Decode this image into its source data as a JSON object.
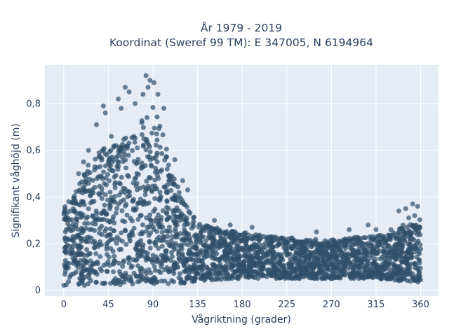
{
  "chart_data": {
    "type": "scatter",
    "title_lines": [
      "År 1979 - 2019",
      "Koordinat (Sweref 99 TM): E 347005, N 6194964"
    ],
    "xlabel": "Vågriktning (grader)",
    "ylabel": "Signifikant våghöjd (m)",
    "xlim": [
      -19,
      378
    ],
    "ylim": [
      -0.025,
      0.965
    ],
    "x_ticks": [
      0,
      45,
      90,
      135,
      180,
      225,
      270,
      315,
      360
    ],
    "x_tick_labels": [
      "0",
      "45",
      "90",
      "135",
      "180",
      "225",
      "270",
      "315",
      "360"
    ],
    "y_ticks": [
      0,
      0.2,
      0.4,
      0.6,
      0.8
    ],
    "y_tick_labels": [
      "0",
      "0,2",
      "0,4",
      "0,6",
      "0,8"
    ],
    "grid": true,
    "plot_background": "#e5ecf6",
    "marker_color": "#2f4f6a",
    "series": [
      {
        "envelope": [
          [
            0,
            0.35
          ],
          [
            10,
            0.42
          ],
          [
            20,
            0.5
          ],
          [
            30,
            0.58
          ],
          [
            40,
            0.62
          ],
          [
            45,
            0.63
          ],
          [
            55,
            0.62
          ],
          [
            65,
            0.67
          ],
          [
            75,
            0.72
          ],
          [
            85,
            0.8
          ],
          [
            90,
            0.8
          ],
          [
            95,
            0.75
          ],
          [
            100,
            0.68
          ],
          [
            105,
            0.6
          ],
          [
            110,
            0.5
          ],
          [
            115,
            0.45
          ],
          [
            120,
            0.4
          ],
          [
            125,
            0.35
          ],
          [
            130,
            0.32
          ],
          [
            135,
            0.3
          ],
          [
            145,
            0.28
          ],
          [
            160,
            0.26
          ],
          [
            180,
            0.25
          ],
          [
            200,
            0.24
          ],
          [
            220,
            0.23
          ],
          [
            240,
            0.22
          ],
          [
            260,
            0.22
          ],
          [
            280,
            0.22
          ],
          [
            300,
            0.23
          ],
          [
            315,
            0.23
          ],
          [
            330,
            0.25
          ],
          [
            345,
            0.29
          ],
          [
            355,
            0.3
          ],
          [
            360,
            0.31
          ]
        ],
        "floor": [
          [
            0,
            0.02
          ],
          [
            60,
            0.02
          ],
          [
            120,
            0.03
          ],
          [
            135,
            0.04
          ],
          [
            180,
            0.05
          ],
          [
            225,
            0.05
          ],
          [
            270,
            0.05
          ],
          [
            315,
            0.05
          ],
          [
            340,
            0.04
          ],
          [
            360,
            0.03
          ]
        ],
        "outliers": [
          [
            83,
            0.92
          ],
          [
            87,
            0.9
          ],
          [
            91,
            0.89
          ],
          [
            85,
            0.87
          ],
          [
            95,
            0.84
          ],
          [
            80,
            0.84
          ],
          [
            62,
            0.87
          ],
          [
            66,
            0.85
          ],
          [
            40,
            0.79
          ],
          [
            42,
            0.76
          ],
          [
            33,
            0.71
          ],
          [
            55,
            0.82
          ],
          [
            58,
            0.78
          ],
          [
            72,
            0.8
          ],
          [
            101,
            0.78
          ],
          [
            48,
            0.66
          ],
          [
            25,
            0.6
          ],
          [
            20,
            0.55
          ],
          [
            15,
            0.5
          ],
          [
            5,
            0.38
          ],
          [
            3,
            0.33
          ],
          [
            112,
            0.56
          ],
          [
            120,
            0.47
          ],
          [
            125,
            0.43
          ],
          [
            152,
            0.3
          ],
          [
            168,
            0.28
          ],
          [
            190,
            0.27
          ],
          [
            255,
            0.25
          ],
          [
            288,
            0.26
          ],
          [
            307,
            0.28
          ],
          [
            315,
            0.26
          ],
          [
            338,
            0.34
          ],
          [
            345,
            0.35
          ],
          [
            352,
            0.37
          ],
          [
            357,
            0.36
          ],
          [
            354,
            0.32
          ],
          [
            348,
            0.31
          ],
          [
            330,
            0.26
          ]
        ]
      }
    ]
  }
}
